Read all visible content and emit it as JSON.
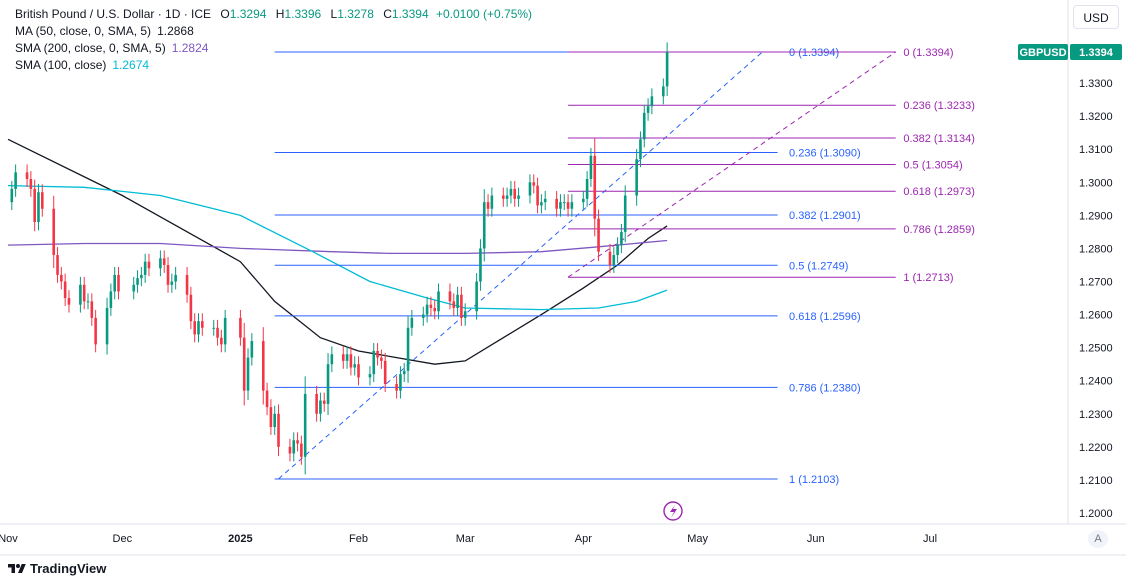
{
  "legend": {
    "title": "British Pound / U.S. Dollar · 1D · ICE",
    "ohlc": [
      {
        "k": "O",
        "v": "1.3294"
      },
      {
        "k": "H",
        "v": "1.3396"
      },
      {
        "k": "L",
        "v": "1.3278"
      },
      {
        "k": "C",
        "v": "1.3394"
      }
    ],
    "change": "+0.0100 (+0.75%)",
    "indicators": [
      {
        "label": "MA (50, close, 0, SMA, 5)",
        "value": "1.2868",
        "color": "#131722"
      },
      {
        "label": "SMA (200, close, 0, SMA, 5)",
        "value": "1.2824",
        "color": "#7e57c2"
      },
      {
        "label": "SMA (100, close)",
        "value": "1.2674",
        "color": "#00bcd4"
      }
    ]
  },
  "currency_button": "USD",
  "auto_button": "A",
  "brand": "TradingView",
  "colors": {
    "up": "#089981",
    "down": "#f23645",
    "ma50": "#131722",
    "sma200": "#7e57c2",
    "sma100": "#00bcd4",
    "fib_blue": "#2962ff",
    "fib_purple": "#9c27b0"
  },
  "chart_data": {
    "type": "candlestick",
    "symbol_badge": "GBPUSD",
    "last_price": "1.3394",
    "ylim": [
      1.195,
      1.347
    ],
    "y_ticks": [
      "1.2000",
      "1.2100",
      "1.2200",
      "1.2300",
      "1.2400",
      "1.2500",
      "1.2600",
      "1.2700",
      "1.2800",
      "1.2900",
      "1.3000",
      "1.3100",
      "1.3200",
      "1.3300"
    ],
    "x_ticks": [
      {
        "day": 0,
        "label": "Nov"
      },
      {
        "day": 30,
        "label": "Dec"
      },
      {
        "day": 61,
        "label": "2025"
      },
      {
        "day": 92,
        "label": "Feb"
      },
      {
        "day": 120,
        "label": "Mar"
      },
      {
        "day": 151,
        "label": "Apr"
      },
      {
        "day": 181,
        "label": "May"
      },
      {
        "day": 212,
        "label": "Jun"
      },
      {
        "day": 242,
        "label": "Jul"
      }
    ],
    "closes": [
      {
        "day": 1,
        "c": 1.298
      },
      {
        "day": 2,
        "c": 1.303
      },
      {
        "day": 5,
        "c": 1.301
      },
      {
        "day": 6,
        "c": 1.298
      },
      {
        "day": 7,
        "c": 1.288
      },
      {
        "day": 8,
        "c": 1.297
      },
      {
        "day": 9,
        "c": 1.292
      },
      {
        "day": 12,
        "c": 1.278
      },
      {
        "day": 13,
        "c": 1.272
      },
      {
        "day": 14,
        "c": 1.27
      },
      {
        "day": 15,
        "c": 1.265
      },
      {
        "day": 16,
        "c": 1.263
      },
      {
        "day": 19,
        "c": 1.269
      },
      {
        "day": 20,
        "c": 1.264
      },
      {
        "day": 21,
        "c": 1.264
      },
      {
        "day": 22,
        "c": 1.259
      },
      {
        "day": 23,
        "c": 1.251
      },
      {
        "day": 26,
        "c": 1.262
      },
      {
        "day": 27,
        "c": 1.267
      },
      {
        "day": 28,
        "c": 1.272
      },
      {
        "day": 29,
        "c": 1.267
      },
      {
        "day": 33,
        "c": 1.269
      },
      {
        "day": 34,
        "c": 1.271
      },
      {
        "day": 35,
        "c": 1.272
      },
      {
        "day": 36,
        "c": 1.276
      },
      {
        "day": 37,
        "c": 1.274
      },
      {
        "day": 40,
        "c": 1.277
      },
      {
        "day": 41,
        "c": 1.275
      },
      {
        "day": 42,
        "c": 1.269
      },
      {
        "day": 43,
        "c": 1.27
      },
      {
        "day": 44,
        "c": 1.272
      },
      {
        "day": 47,
        "c": 1.266
      },
      {
        "day": 48,
        "c": 1.258
      },
      {
        "day": 49,
        "c": 1.254
      },
      {
        "day": 50,
        "c": 1.258
      },
      {
        "day": 51,
        "c": 1.256
      },
      {
        "day": 54,
        "c": 1.256
      },
      {
        "day": 55,
        "c": 1.253
      },
      {
        "day": 56,
        "c": 1.251
      },
      {
        "day": 57,
        "c": 1.259
      },
      {
        "day": 61,
        "c": 1.253
      },
      {
        "day": 62,
        "c": 1.237
      },
      {
        "day": 63,
        "c": 1.247
      },
      {
        "day": 64,
        "c": 1.252
      },
      {
        "day": 67,
        "c": 1.237
      },
      {
        "day": 68,
        "c": 1.232
      },
      {
        "day": 69,
        "c": 1.226
      },
      {
        "day": 70,
        "c": 1.23
      },
      {
        "day": 71,
        "c": 1.22
      },
      {
        "day": 74,
        "c": 1.218
      },
      {
        "day": 75,
        "c": 1.222
      },
      {
        "day": 76,
        "c": 1.221
      },
      {
        "day": 77,
        "c": 1.217
      },
      {
        "day": 78,
        "c": 1.236
      },
      {
        "day": 81,
        "c": 1.23
      },
      {
        "day": 82,
        "c": 1.234
      },
      {
        "day": 83,
        "c": 1.233
      },
      {
        "day": 84,
        "c": 1.245
      },
      {
        "day": 85,
        "c": 1.248
      },
      {
        "day": 88,
        "c": 1.246
      },
      {
        "day": 89,
        "c": 1.248
      },
      {
        "day": 90,
        "c": 1.244
      },
      {
        "day": 91,
        "c": 1.245
      },
      {
        "day": 92,
        "c": 1.241
      },
      {
        "day": 95,
        "c": 1.242
      },
      {
        "day": 96,
        "c": 1.249
      },
      {
        "day": 97,
        "c": 1.247
      },
      {
        "day": 98,
        "c": 1.246
      },
      {
        "day": 99,
        "c": 1.239
      },
      {
        "day": 102,
        "c": 1.237
      },
      {
        "day": 103,
        "c": 1.242
      },
      {
        "day": 104,
        "c": 1.243
      },
      {
        "day": 105,
        "c": 1.256
      },
      {
        "day": 106,
        "c": 1.259
      },
      {
        "day": 109,
        "c": 1.26
      },
      {
        "day": 110,
        "c": 1.263
      },
      {
        "day": 111,
        "c": 1.262
      },
      {
        "day": 112,
        "c": 1.261
      },
      {
        "day": 113,
        "c": 1.267
      },
      {
        "day": 116,
        "c": 1.264
      },
      {
        "day": 117,
        "c": 1.262
      },
      {
        "day": 118,
        "c": 1.266
      },
      {
        "day": 119,
        "c": 1.259
      },
      {
        "day": 120,
        "c": 1.261
      },
      {
        "day": 123,
        "c": 1.27
      },
      {
        "day": 124,
        "c": 1.28
      },
      {
        "day": 125,
        "c": 1.294
      },
      {
        "day": 126,
        "c": 1.292
      },
      {
        "day": 127,
        "c": 1.296
      },
      {
        "day": 130,
        "c": 1.295
      },
      {
        "day": 131,
        "c": 1.296
      },
      {
        "day": 132,
        "c": 1.298
      },
      {
        "day": 133,
        "c": 1.295
      },
      {
        "day": 134,
        "c": 1.296
      },
      {
        "day": 137,
        "c": 1.3
      },
      {
        "day": 138,
        "c": 1.299
      },
      {
        "day": 139,
        "c": 1.293
      },
      {
        "day": 140,
        "c": 1.294
      },
      {
        "day": 141,
        "c": 1.295
      },
      {
        "day": 144,
        "c": 1.292
      },
      {
        "day": 145,
        "c": 1.294
      },
      {
        "day": 146,
        "c": 1.294
      },
      {
        "day": 147,
        "c": 1.292
      },
      {
        "day": 148,
        "c": 1.294
      },
      {
        "day": 151,
        "c": 1.295
      },
      {
        "day": 152,
        "c": 1.301
      },
      {
        "day": 153,
        "c": 1.308
      },
      {
        "day": 154,
        "c": 1.289
      },
      {
        "day": 155,
        "c": 1.279
      },
      {
        "day": 158,
        "c": 1.275
      },
      {
        "day": 159,
        "c": 1.278
      },
      {
        "day": 160,
        "c": 1.281
      },
      {
        "day": 161,
        "c": 1.285
      },
      {
        "day": 162,
        "c": 1.296
      },
      {
        "day": 165,
        "c": 1.307
      },
      {
        "day": 166,
        "c": 1.313
      },
      {
        "day": 167,
        "c": 1.321
      },
      {
        "day": 168,
        "c": 1.323
      },
      {
        "day": 169,
        "c": 1.326
      },
      {
        "day": 172,
        "c": 1.329
      },
      {
        "day": 173,
        "c": 1.3394
      }
    ],
    "moving_averages": [
      {
        "name": "MA 50",
        "color": "#131722",
        "points": [
          [
            0,
            1.313
          ],
          [
            30,
            1.296
          ],
          [
            61,
            1.276
          ],
          [
            70,
            1.264
          ],
          [
            82,
            1.253
          ],
          [
            92,
            1.249
          ],
          [
            102,
            1.247
          ],
          [
            112,
            1.245
          ],
          [
            120,
            1.246
          ],
          [
            130,
            1.253
          ],
          [
            140,
            1.26
          ],
          [
            151,
            1.268
          ],
          [
            160,
            1.275
          ],
          [
            168,
            1.283
          ],
          [
            173,
            1.2868
          ]
        ]
      },
      {
        "name": "SMA 200",
        "color": "#7e57c2",
        "points": [
          [
            0,
            1.281
          ],
          [
            20,
            1.2815
          ],
          [
            40,
            1.2815
          ],
          [
            61,
            1.28
          ],
          [
            85,
            1.279
          ],
          [
            100,
            1.2785
          ],
          [
            120,
            1.2785
          ],
          [
            140,
            1.279
          ],
          [
            155,
            1.2805
          ],
          [
            173,
            1.2824
          ]
        ]
      },
      {
        "name": "SMA 100",
        "color": "#00bcd4",
        "points": [
          [
            0,
            1.299
          ],
          [
            20,
            1.2985
          ],
          [
            40,
            1.296
          ],
          [
            61,
            1.29
          ],
          [
            80,
            1.279
          ],
          [
            95,
            1.27
          ],
          [
            110,
            1.265
          ],
          [
            120,
            1.262
          ],
          [
            140,
            1.2615
          ],
          [
            155,
            1.262
          ],
          [
            165,
            1.264
          ],
          [
            173,
            1.2674
          ]
        ]
      }
    ],
    "fib_blue": {
      "start_day": 70,
      "end_day": 202,
      "label_day": 205,
      "levels": [
        {
          "text": "0 (1.3394)",
          "v": 1.3394
        },
        {
          "text": "0.236 (1.3090)",
          "v": 1.309
        },
        {
          "text": "0.382 (1.2901)",
          "v": 1.2901
        },
        {
          "text": "0.5 (1.2749)",
          "v": 1.2749
        },
        {
          "text": "0.618 (1.2596)",
          "v": 1.2596
        },
        {
          "text": "0.786 (1.2380)",
          "v": 1.238
        },
        {
          "text": "1 (1.2103)",
          "v": 1.2103
        }
      ],
      "trend_from": [
        71,
        1.2103
      ],
      "trend_to": [
        198,
        1.3394
      ]
    },
    "fib_purple": {
      "start_day": 147,
      "end_day": 233,
      "label_day": 235,
      "levels": [
        {
          "text": "0 (1.3394)",
          "v": 1.3394
        },
        {
          "text": "0.236 (1.3233)",
          "v": 1.3233
        },
        {
          "text": "0.382 (1.3134)",
          "v": 1.3134
        },
        {
          "text": "0.5 (1.3054)",
          "v": 1.3054
        },
        {
          "text": "0.618 (1.2973)",
          "v": 1.2973
        },
        {
          "text": "0.786 (1.2859)",
          "v": 1.2859
        },
        {
          "text": "1 (1.2713)",
          "v": 1.2713
        }
      ],
      "trend_from": [
        147,
        1.2713
      ],
      "trend_to": [
        233,
        1.3394
      ]
    }
  }
}
